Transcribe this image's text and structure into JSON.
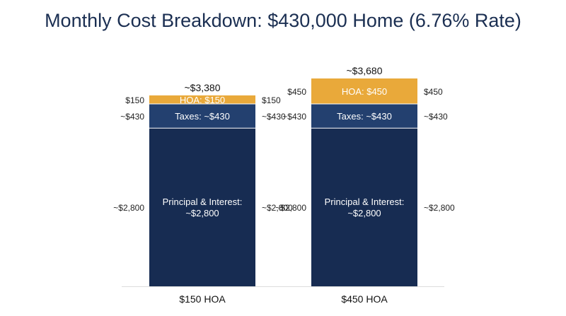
{
  "chart_data": {
    "type": "bar",
    "stacked": true,
    "title": "Monthly Cost Breakdown: $430,000 Home (6.76% Rate)",
    "categories": [
      "$150 HOA",
      "$450 HOA"
    ],
    "totals": [
      3380,
      3680
    ],
    "total_labels": [
      "~$3,380",
      "~$3,680"
    ],
    "series": [
      {
        "name": "Principal & Interest",
        "values": [
          2800,
          2800
        ],
        "inside_labels": [
          [
            "Principal & Interest:",
            "~$2,800"
          ],
          [
            "Principal & Interest:",
            "~$2,800"
          ]
        ],
        "side_labels": [
          "~$2,800",
          "~$2,800"
        ],
        "color": "#172c52",
        "text_color": "#ffffff"
      },
      {
        "name": "Taxes",
        "values": [
          430,
          430
        ],
        "inside_labels": [
          [
            "Taxes: ~$430"
          ],
          [
            "Taxes: ~$430"
          ]
        ],
        "side_labels": [
          "~$430",
          "~$430"
        ],
        "color": "#23406f",
        "text_color": "#ffffff"
      },
      {
        "name": "HOA",
        "values": [
          150,
          450
        ],
        "inside_labels": [
          [
            "HOA: $150"
          ],
          [
            "HOA: $450"
          ]
        ],
        "side_labels": [
          "$150",
          "$450"
        ],
        "color": "#e9a93a",
        "text_color": "#ffffff"
      }
    ],
    "xlabel": "",
    "ylabel": "",
    "ylim": [
      0,
      3680
    ],
    "grid": false,
    "legend": "none"
  }
}
